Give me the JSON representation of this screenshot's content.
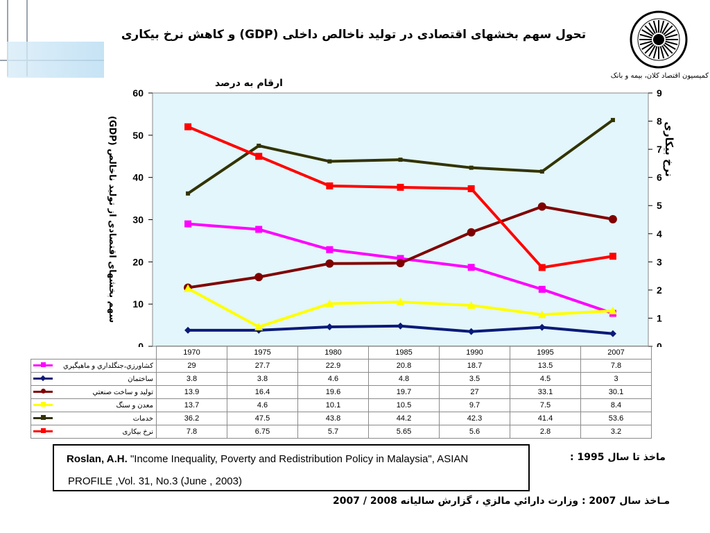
{
  "title": "تحول سهم بخشهای اقتصادی در تولید ناخالص داخلی (GDP) و کاهش نرخ بیکاری",
  "commission": "کمیسیون اقتصاد کلان، بیمه و بانک",
  "chart_data": {
    "type": "line",
    "subtitle": "ارقام به درصد",
    "ylabel_left": "سهم بخشهای اقتصادی از تولید ناخالص (GDP)",
    "ylabel_right": "نرخ بیکاری",
    "ylim_left": [
      0,
      60
    ],
    "ylim_right": [
      0,
      9
    ],
    "yticks_left": [
      "0",
      "10",
      "20",
      "30",
      "40",
      "50",
      "60"
    ],
    "yticks_right": [
      "0",
      "1",
      "2",
      "3",
      "4",
      "5",
      "6",
      "7",
      "8",
      "9"
    ],
    "categories": [
      "1970",
      "1975",
      "1980",
      "1985",
      "1990",
      "1995",
      "2007"
    ],
    "series": [
      {
        "name": "کشاورزي،جنگلداري و ماهيگيري",
        "color": "#ff00ff",
        "marker": "square",
        "axis": "left",
        "values": [
          29,
          27.7,
          22.9,
          20.8,
          18.7,
          13.5,
          7.8
        ]
      },
      {
        "name": "ساختمان",
        "color": "#0a1a78",
        "marker": "diamond",
        "axis": "left",
        "values": [
          3.8,
          3.8,
          4.6,
          4.8,
          3.5,
          4.5,
          3
        ]
      },
      {
        "name": "توليد و ساخت صنعتي",
        "color": "#800000",
        "marker": "circle",
        "axis": "left",
        "values": [
          13.9,
          16.4,
          19.6,
          19.7,
          27,
          33.1,
          30.1
        ]
      },
      {
        "name": "معدن و سنگ",
        "color": "#ffff00",
        "marker": "triangle",
        "axis": "left",
        "values": [
          13.7,
          4.6,
          10.1,
          10.5,
          9.7,
          7.5,
          8.4
        ]
      },
      {
        "name": "خدمات",
        "color": "#333300",
        "marker": "dash",
        "axis": "left",
        "values": [
          36.2,
          47.5,
          43.8,
          44.2,
          42.3,
          41.4,
          53.6
        ]
      },
      {
        "name": "نرخ بیکاری",
        "color": "#ff0000",
        "marker": "square",
        "axis": "right",
        "values": [
          7.8,
          6.75,
          5.7,
          5.65,
          5.6,
          2.8,
          3.2
        ]
      }
    ],
    "table_values": [
      [
        "29",
        "27.7",
        "22.9",
        "20.8",
        "18.7",
        "13.5",
        "7.8"
      ],
      [
        "3.8",
        "3.8",
        "4.6",
        "4.8",
        "3.5",
        "4.5",
        "3"
      ],
      [
        "13.9",
        "16.4",
        "19.6",
        "19.7",
        "27",
        "33.1",
        "30.1"
      ],
      [
        "13.7",
        "4.6",
        "10.1",
        "10.5",
        "9.7",
        "7.5",
        "8.4"
      ],
      [
        "36.2",
        "47.5",
        "43.8",
        "44.2",
        "42.3",
        "41.4",
        "53.6"
      ],
      [
        "7.8",
        "6.75",
        "5.7",
        "5.65",
        "5.6",
        "2.8",
        "3.2"
      ]
    ],
    "plot_background": "#e2f6fb"
  },
  "reference": {
    "author": "Roslan, A.H.",
    "line1_rest": " \"Income Inequality, Poverty and Redistribution Policy in Malaysia\", ASIAN",
    "line2": "PROFILE  ,Vol. 31, No.3 (June , 2003)"
  },
  "source_1995": "ماخذ تا سال 1995 :",
  "source_2007": "مـاخذ سال 2007 : وزارت دارائي مالزي ، گزارش ساليانه 2008 / 2007"
}
